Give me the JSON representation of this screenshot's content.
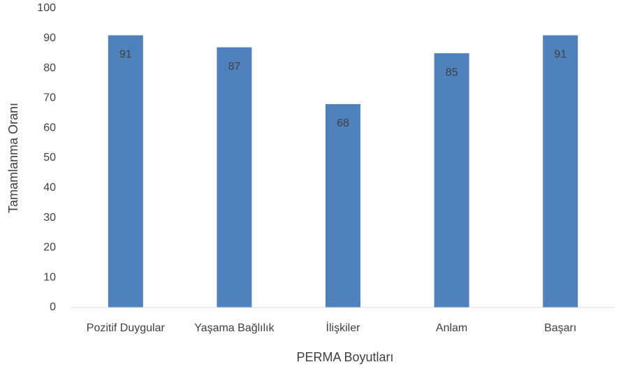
{
  "chart_data": {
    "type": "bar",
    "x_label": "PERMA Boyutları",
    "y_label": "Tamamlanma Oranı",
    "categories": [
      "Pozitif Duygular",
      "Yaşama Bağlılık",
      "İlişkiler",
      "Anlam",
      "Başarı"
    ],
    "values": [
      91,
      87,
      68,
      85,
      91
    ],
    "color": "#4f81bd",
    "ylim": [
      0,
      100
    ],
    "yticks": [
      0,
      10,
      20,
      30,
      40,
      50,
      60,
      70,
      80,
      90,
      100
    ],
    "grid": false
  }
}
